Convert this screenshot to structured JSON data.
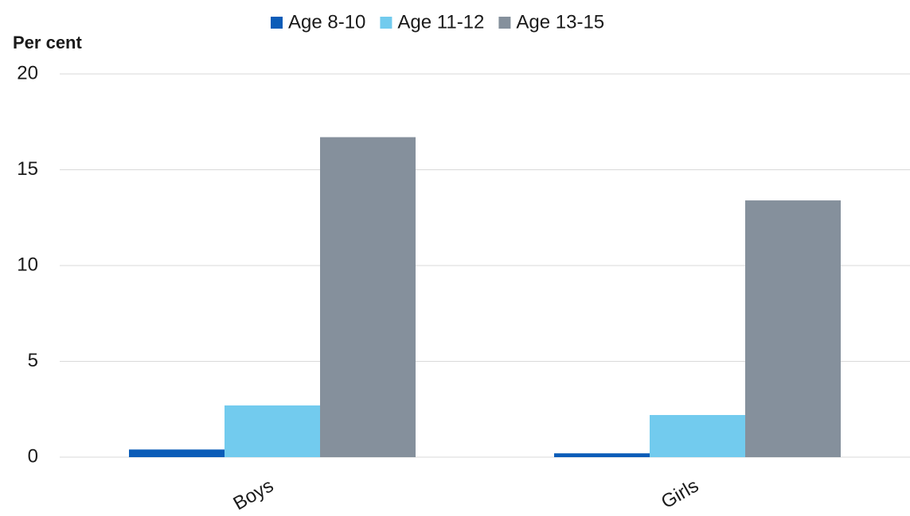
{
  "chart_data": {
    "type": "bar",
    "y_label": "Per cent",
    "categories": [
      "Boys",
      "Girls"
    ],
    "series": [
      {
        "name": "Age 8-10",
        "color": "#0b5cb8",
        "values": [
          0.4,
          0.2
        ]
      },
      {
        "name": "Age 11-12",
        "color": "#72cbee",
        "values": [
          2.7,
          2.2
        ]
      },
      {
        "name": "Age 13-15",
        "color": "#85909c",
        "values": [
          16.7,
          13.4
        ]
      }
    ],
    "ylim": [
      0,
      20
    ],
    "yticks": [
      0,
      5,
      10,
      15,
      20
    ],
    "grid": true,
    "legend": "top"
  }
}
